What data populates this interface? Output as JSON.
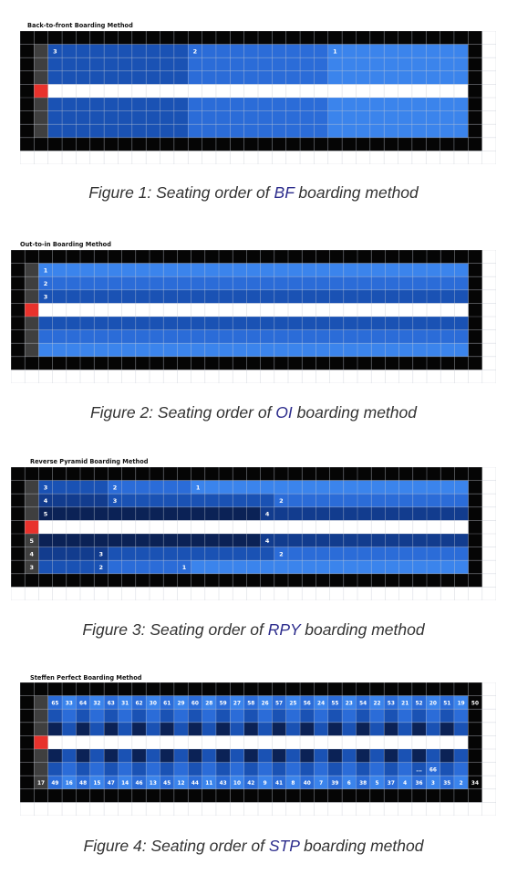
{
  "figures": [
    {
      "id": "bf",
      "title": "Back-to-front Boarding Method",
      "caption": {
        "pre": "Figure 1:  Seating order of ",
        "highlight": "BF",
        "post": " boarding method"
      },
      "labels": [
        {
          "row": 1,
          "col": 2,
          "text": "3"
        },
        {
          "row": 1,
          "col": 12,
          "text": "2"
        },
        {
          "row": 1,
          "col": 22,
          "text": "1"
        }
      ]
    },
    {
      "id": "oi",
      "title": "Out-to-in Boarding Method",
      "caption": {
        "pre": "Figure 2:  Seating order of ",
        "highlight": "OI",
        "post": " boarding method"
      },
      "labels": [
        {
          "row": 1,
          "col": 2,
          "text": "1"
        },
        {
          "row": 2,
          "col": 2,
          "text": "2"
        },
        {
          "row": 3,
          "col": 2,
          "text": "3"
        }
      ]
    },
    {
      "id": "rpy",
      "title": "Reverse Pyramid Boarding Method",
      "caption": {
        "pre": "Figure 3:  Seating order of ",
        "highlight": "RPY",
        "post": " boarding method"
      },
      "labels": [
        {
          "row": 1,
          "col": 2,
          "text": "3"
        },
        {
          "row": 1,
          "col": 7,
          "text": "2"
        },
        {
          "row": 1,
          "col": 13,
          "text": "1"
        },
        {
          "row": 2,
          "col": 2,
          "text": "4"
        },
        {
          "row": 2,
          "col": 7,
          "text": "3"
        },
        {
          "row": 2,
          "col": 19,
          "text": "2"
        },
        {
          "row": 3,
          "col": 2,
          "text": "5"
        },
        {
          "row": 3,
          "col": 18,
          "text": "4"
        },
        {
          "row": 5,
          "col": 1,
          "text": "5"
        },
        {
          "row": 5,
          "col": 18,
          "text": "4"
        },
        {
          "row": 6,
          "col": 1,
          "text": "4"
        },
        {
          "row": 6,
          "col": 6,
          "text": "3"
        },
        {
          "row": 6,
          "col": 19,
          "text": "2"
        },
        {
          "row": 7,
          "col": 1,
          "text": "3"
        },
        {
          "row": 7,
          "col": 6,
          "text": "2"
        },
        {
          "row": 7,
          "col": 12,
          "text": "1"
        }
      ]
    },
    {
      "id": "stp",
      "title": "Steffen Perfect Boarding Method",
      "caption": {
        "pre": "Figure 4:  Seating order of ",
        "highlight": "STP",
        "post": " boarding method"
      },
      "top_row": [
        "65",
        "33",
        "64",
        "32",
        "63",
        "31",
        "62",
        "30",
        "61",
        "29",
        "60",
        "28",
        "59",
        "27",
        "58",
        "26",
        "57",
        "25",
        "56",
        "24",
        "55",
        "23",
        "54",
        "22",
        "53",
        "21",
        "52",
        "20",
        "51",
        "19",
        "50",
        "18"
      ],
      "extra": [
        {
          "row": 6,
          "col": 28,
          "text": "..."
        },
        {
          "row": 6,
          "col": 29,
          "text": "66"
        }
      ],
      "bottom_row": [
        "17",
        "49",
        "16",
        "48",
        "15",
        "47",
        "14",
        "46",
        "13",
        "45",
        "12",
        "44",
        "11",
        "43",
        "10",
        "42",
        "9",
        "41",
        "8",
        "40",
        "7",
        "39",
        "6",
        "38",
        "5",
        "37",
        "4",
        "36",
        "3",
        "35",
        "2",
        "34",
        "1"
      ]
    }
  ],
  "colors": {
    "black": "#050505",
    "lead_gray": "#3f3f3f",
    "aisle": "#ffffff",
    "door": "#e8322c",
    "blue_dark": "#1a52b4",
    "blue_mid": "#2b6cd8",
    "blue_light": "#3b84ec",
    "navy": "#0b2256",
    "text": "#ffffff",
    "caption": "#333333",
    "highlight": "#2c2c8c"
  }
}
